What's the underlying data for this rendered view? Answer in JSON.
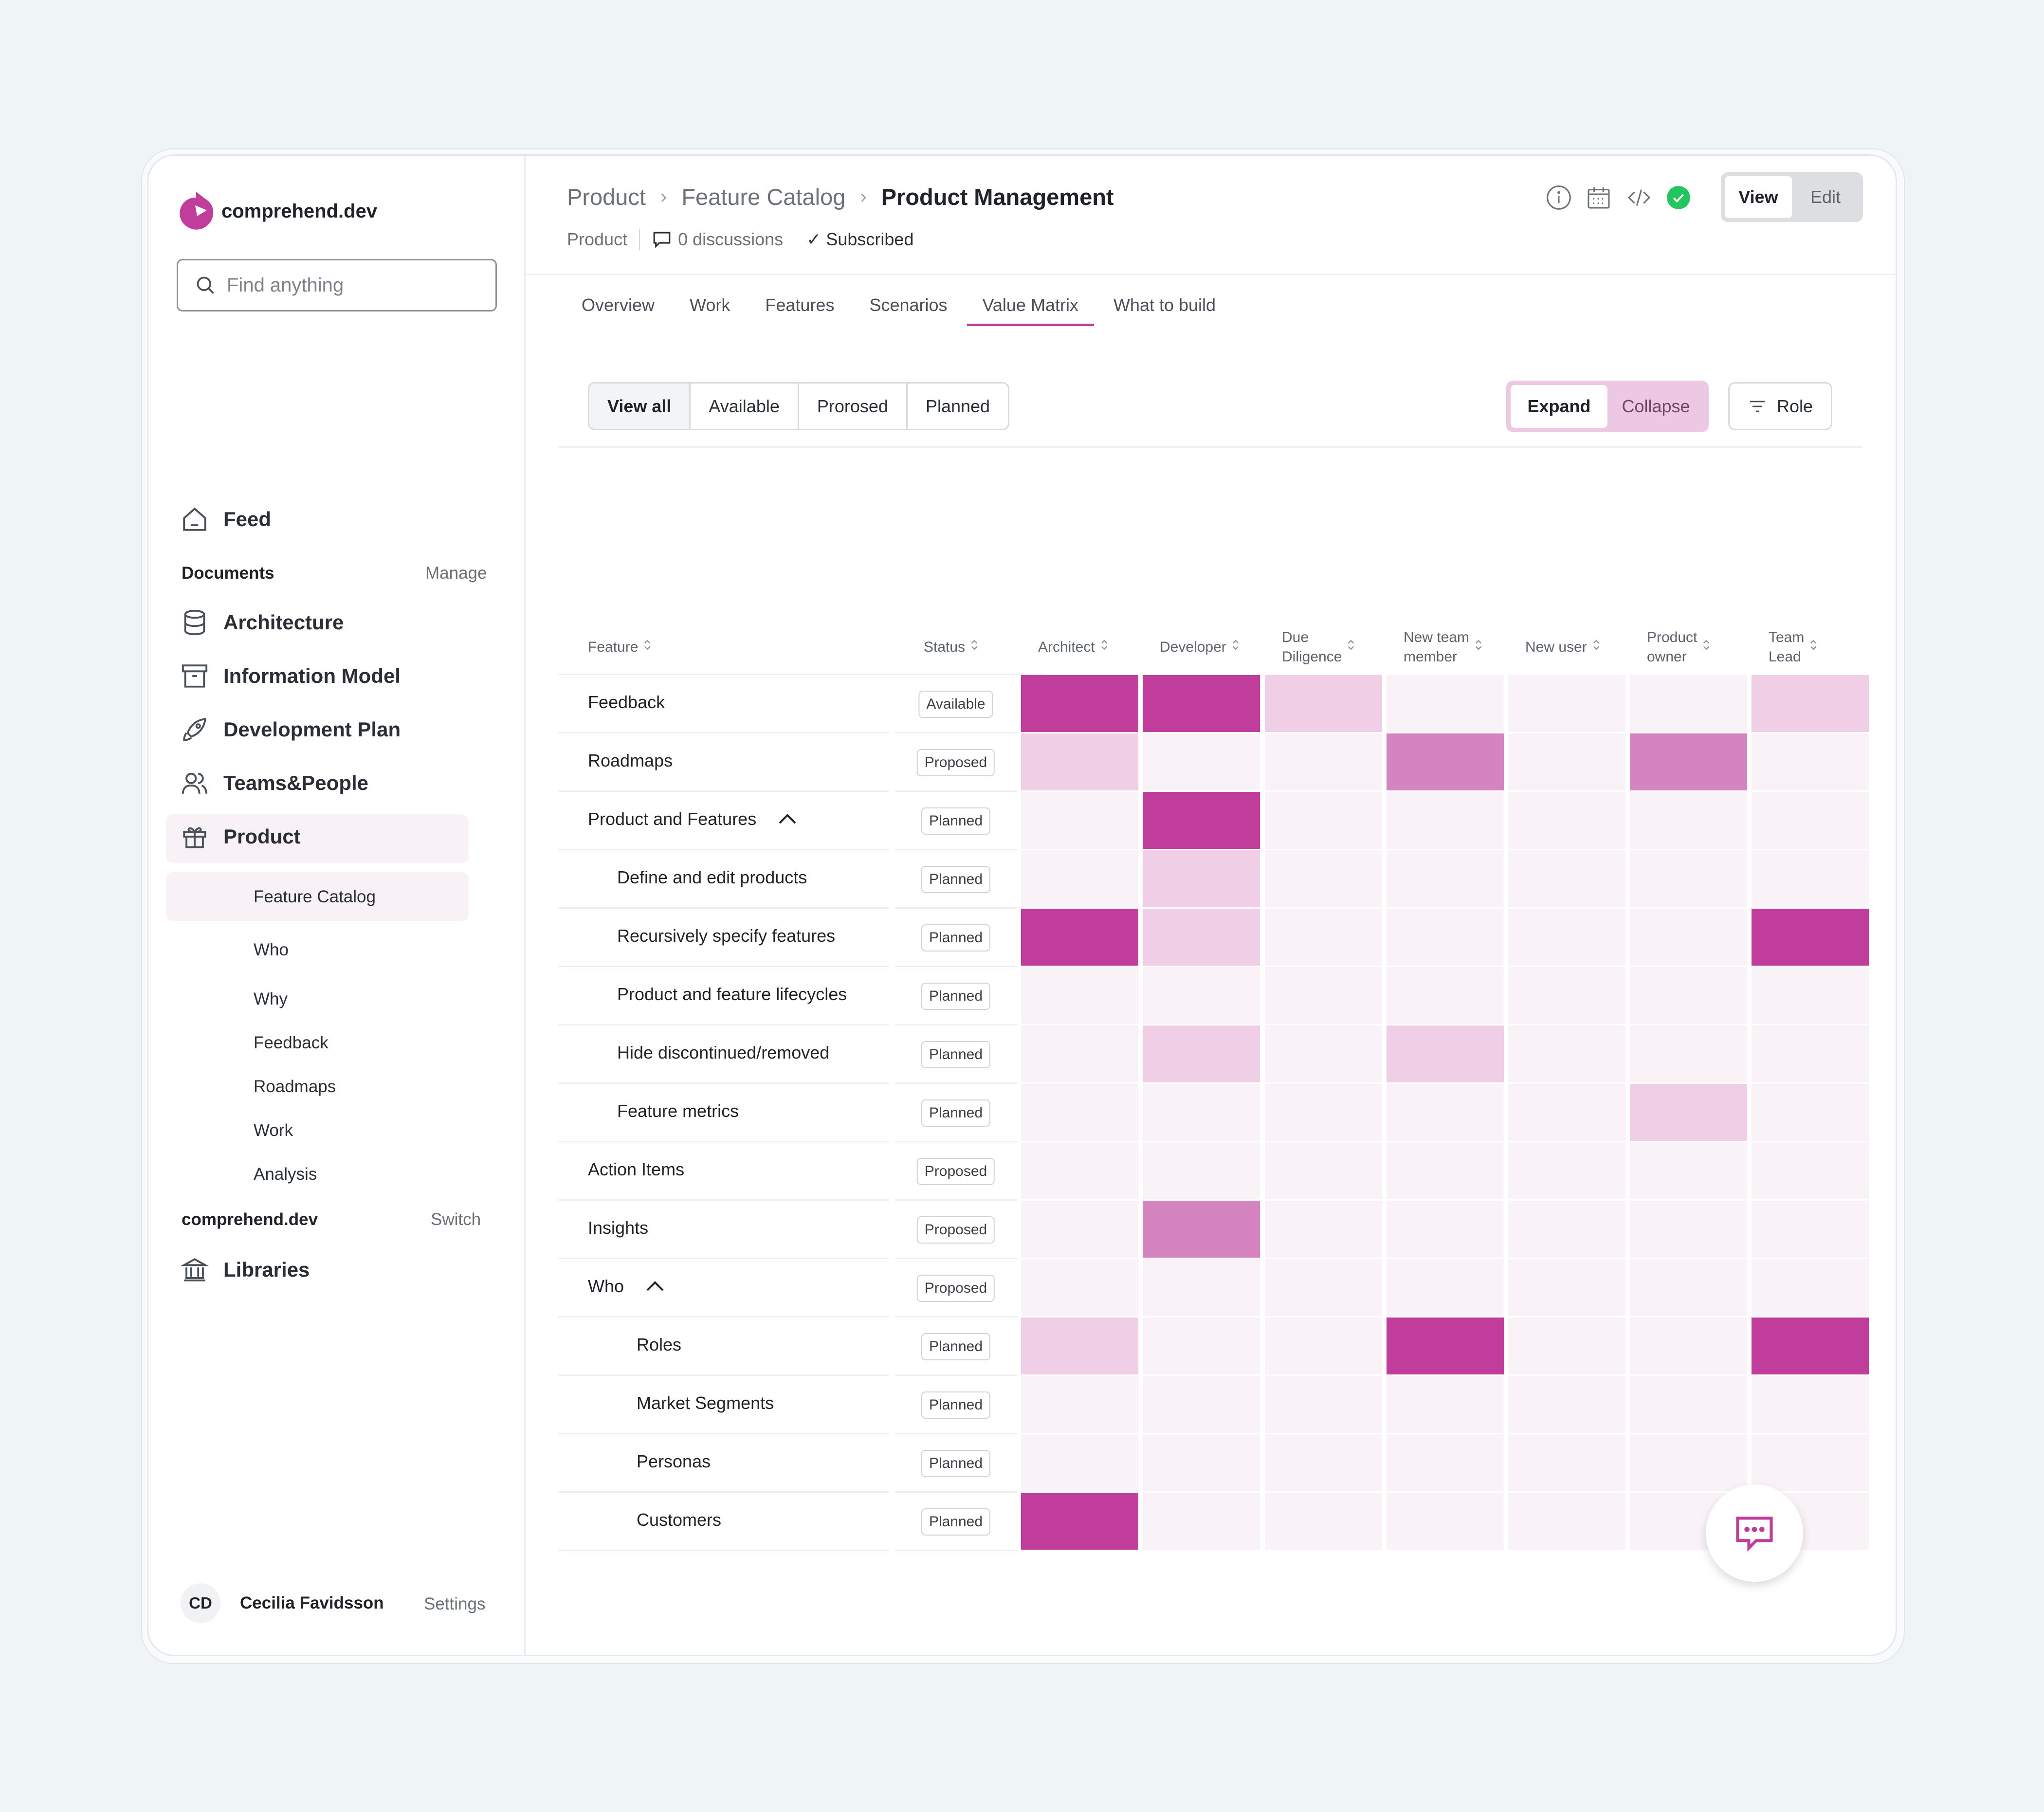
{
  "app": {
    "brand": "comprehend.dev",
    "search_placeholder": "Find anything"
  },
  "sidebar": {
    "feed": "Feed",
    "documents_label": "Documents",
    "manage": "Manage",
    "items": [
      {
        "label": "Architecture",
        "icon": "database-icon"
      },
      {
        "label": "Information Model",
        "icon": "archive-icon"
      },
      {
        "label": "Development Plan",
        "icon": "rocket-icon"
      },
      {
        "label": "Teams&People",
        "icon": "users-icon"
      },
      {
        "label": "Product",
        "icon": "gift-icon"
      }
    ],
    "subitems": [
      "Feature Catalog",
      "Who",
      "Why",
      "Feedback",
      "Roadmaps",
      "Work",
      "Analysis"
    ],
    "workspace_label": "comprehend.dev",
    "switch": "Switch",
    "libraries": "Libraries",
    "user": {
      "initials": "CD",
      "name": "Cecilia Favidsson",
      "settings": "Settings"
    }
  },
  "header": {
    "breadcrumb": [
      "Product",
      "Feature Catalog",
      "Product Management"
    ],
    "meta_product": "Product",
    "discussions": "0 discussions",
    "subscribed": "Subscribed",
    "view": "View",
    "edit": "Edit"
  },
  "tabs": [
    "Overview",
    "Work",
    "Features",
    "Scenarios",
    "Value Matrix",
    "What to build"
  ],
  "filters": [
    "View all",
    "Available",
    "Prorosed",
    "Planned"
  ],
  "expand": "Expand",
  "collapse": "Collapse",
  "role": "Role",
  "colors": {
    "accent": "#c13d9b",
    "strong": "#c13d9b",
    "medium": "#d584bf",
    "light": "#f0cfe6",
    "empty": "#f9f2f7"
  },
  "table": {
    "col_feature": "Feature",
    "col_status": "Status",
    "roles": [
      [
        "Architect"
      ],
      [
        "Developer"
      ],
      [
        "Due",
        "Diligence"
      ],
      [
        "New team",
        "member"
      ],
      [
        "New user"
      ],
      [
        "Product",
        "owner"
      ],
      [
        "Team",
        "Lead"
      ]
    ],
    "rows": [
      {
        "feature": "Feedback",
        "indent": 0,
        "status": "Available",
        "values": [
          3,
          3,
          1,
          0,
          0,
          0,
          1
        ]
      },
      {
        "feature": "Roadmaps",
        "indent": 0,
        "status": "Proposed",
        "values": [
          1,
          0,
          0,
          2,
          0,
          2,
          0
        ]
      },
      {
        "feature": "Product and Features",
        "indent": 0,
        "status": "Planned",
        "chevron": true,
        "values": [
          0,
          3,
          0,
          0,
          0,
          0,
          0
        ]
      },
      {
        "feature": "Define and edit products",
        "indent": 1,
        "status": "Planned",
        "values": [
          0,
          1,
          0,
          0,
          0,
          0,
          0
        ]
      },
      {
        "feature": "Recursively specify features",
        "indent": 1,
        "status": "Planned",
        "values": [
          3,
          1,
          0,
          0,
          0,
          0,
          3
        ]
      },
      {
        "feature": "Product and feature lifecycles",
        "indent": 1,
        "status": "Planned",
        "values": [
          0,
          0,
          0,
          0,
          0,
          0,
          0
        ]
      },
      {
        "feature": "Hide discontinued/removed",
        "indent": 1,
        "status": "Planned",
        "values": [
          0,
          1,
          0,
          1,
          0,
          0,
          0
        ]
      },
      {
        "feature": "Feature metrics",
        "indent": 1,
        "status": "Planned",
        "values": [
          0,
          0,
          0,
          0,
          0,
          1,
          0
        ]
      },
      {
        "feature": "Action Items",
        "indent": 0,
        "status": "Proposed",
        "values": [
          0,
          0,
          0,
          0,
          0,
          0,
          0
        ]
      },
      {
        "feature": "Insights",
        "indent": 0,
        "status": "Proposed",
        "values": [
          0,
          2,
          0,
          0,
          0,
          0,
          0
        ]
      },
      {
        "feature": "Who",
        "indent": 0,
        "status": "Proposed",
        "chevron": true,
        "values": [
          0,
          0,
          0,
          0,
          0,
          0,
          0
        ]
      },
      {
        "feature": "Roles",
        "indent": 2,
        "status": "Planned",
        "values": [
          1,
          0,
          0,
          3,
          0,
          0,
          3
        ]
      },
      {
        "feature": "Market Segments",
        "indent": 2,
        "status": "Planned",
        "values": [
          0,
          0,
          0,
          0,
          0,
          0,
          0
        ]
      },
      {
        "feature": "Personas",
        "indent": 2,
        "status": "Planned",
        "values": [
          0,
          0,
          0,
          0,
          0,
          0,
          0
        ]
      },
      {
        "feature": "Customers",
        "indent": 2,
        "status": "Planned",
        "values": [
          3,
          0,
          0,
          0,
          0,
          0,
          0
        ]
      }
    ]
  }
}
